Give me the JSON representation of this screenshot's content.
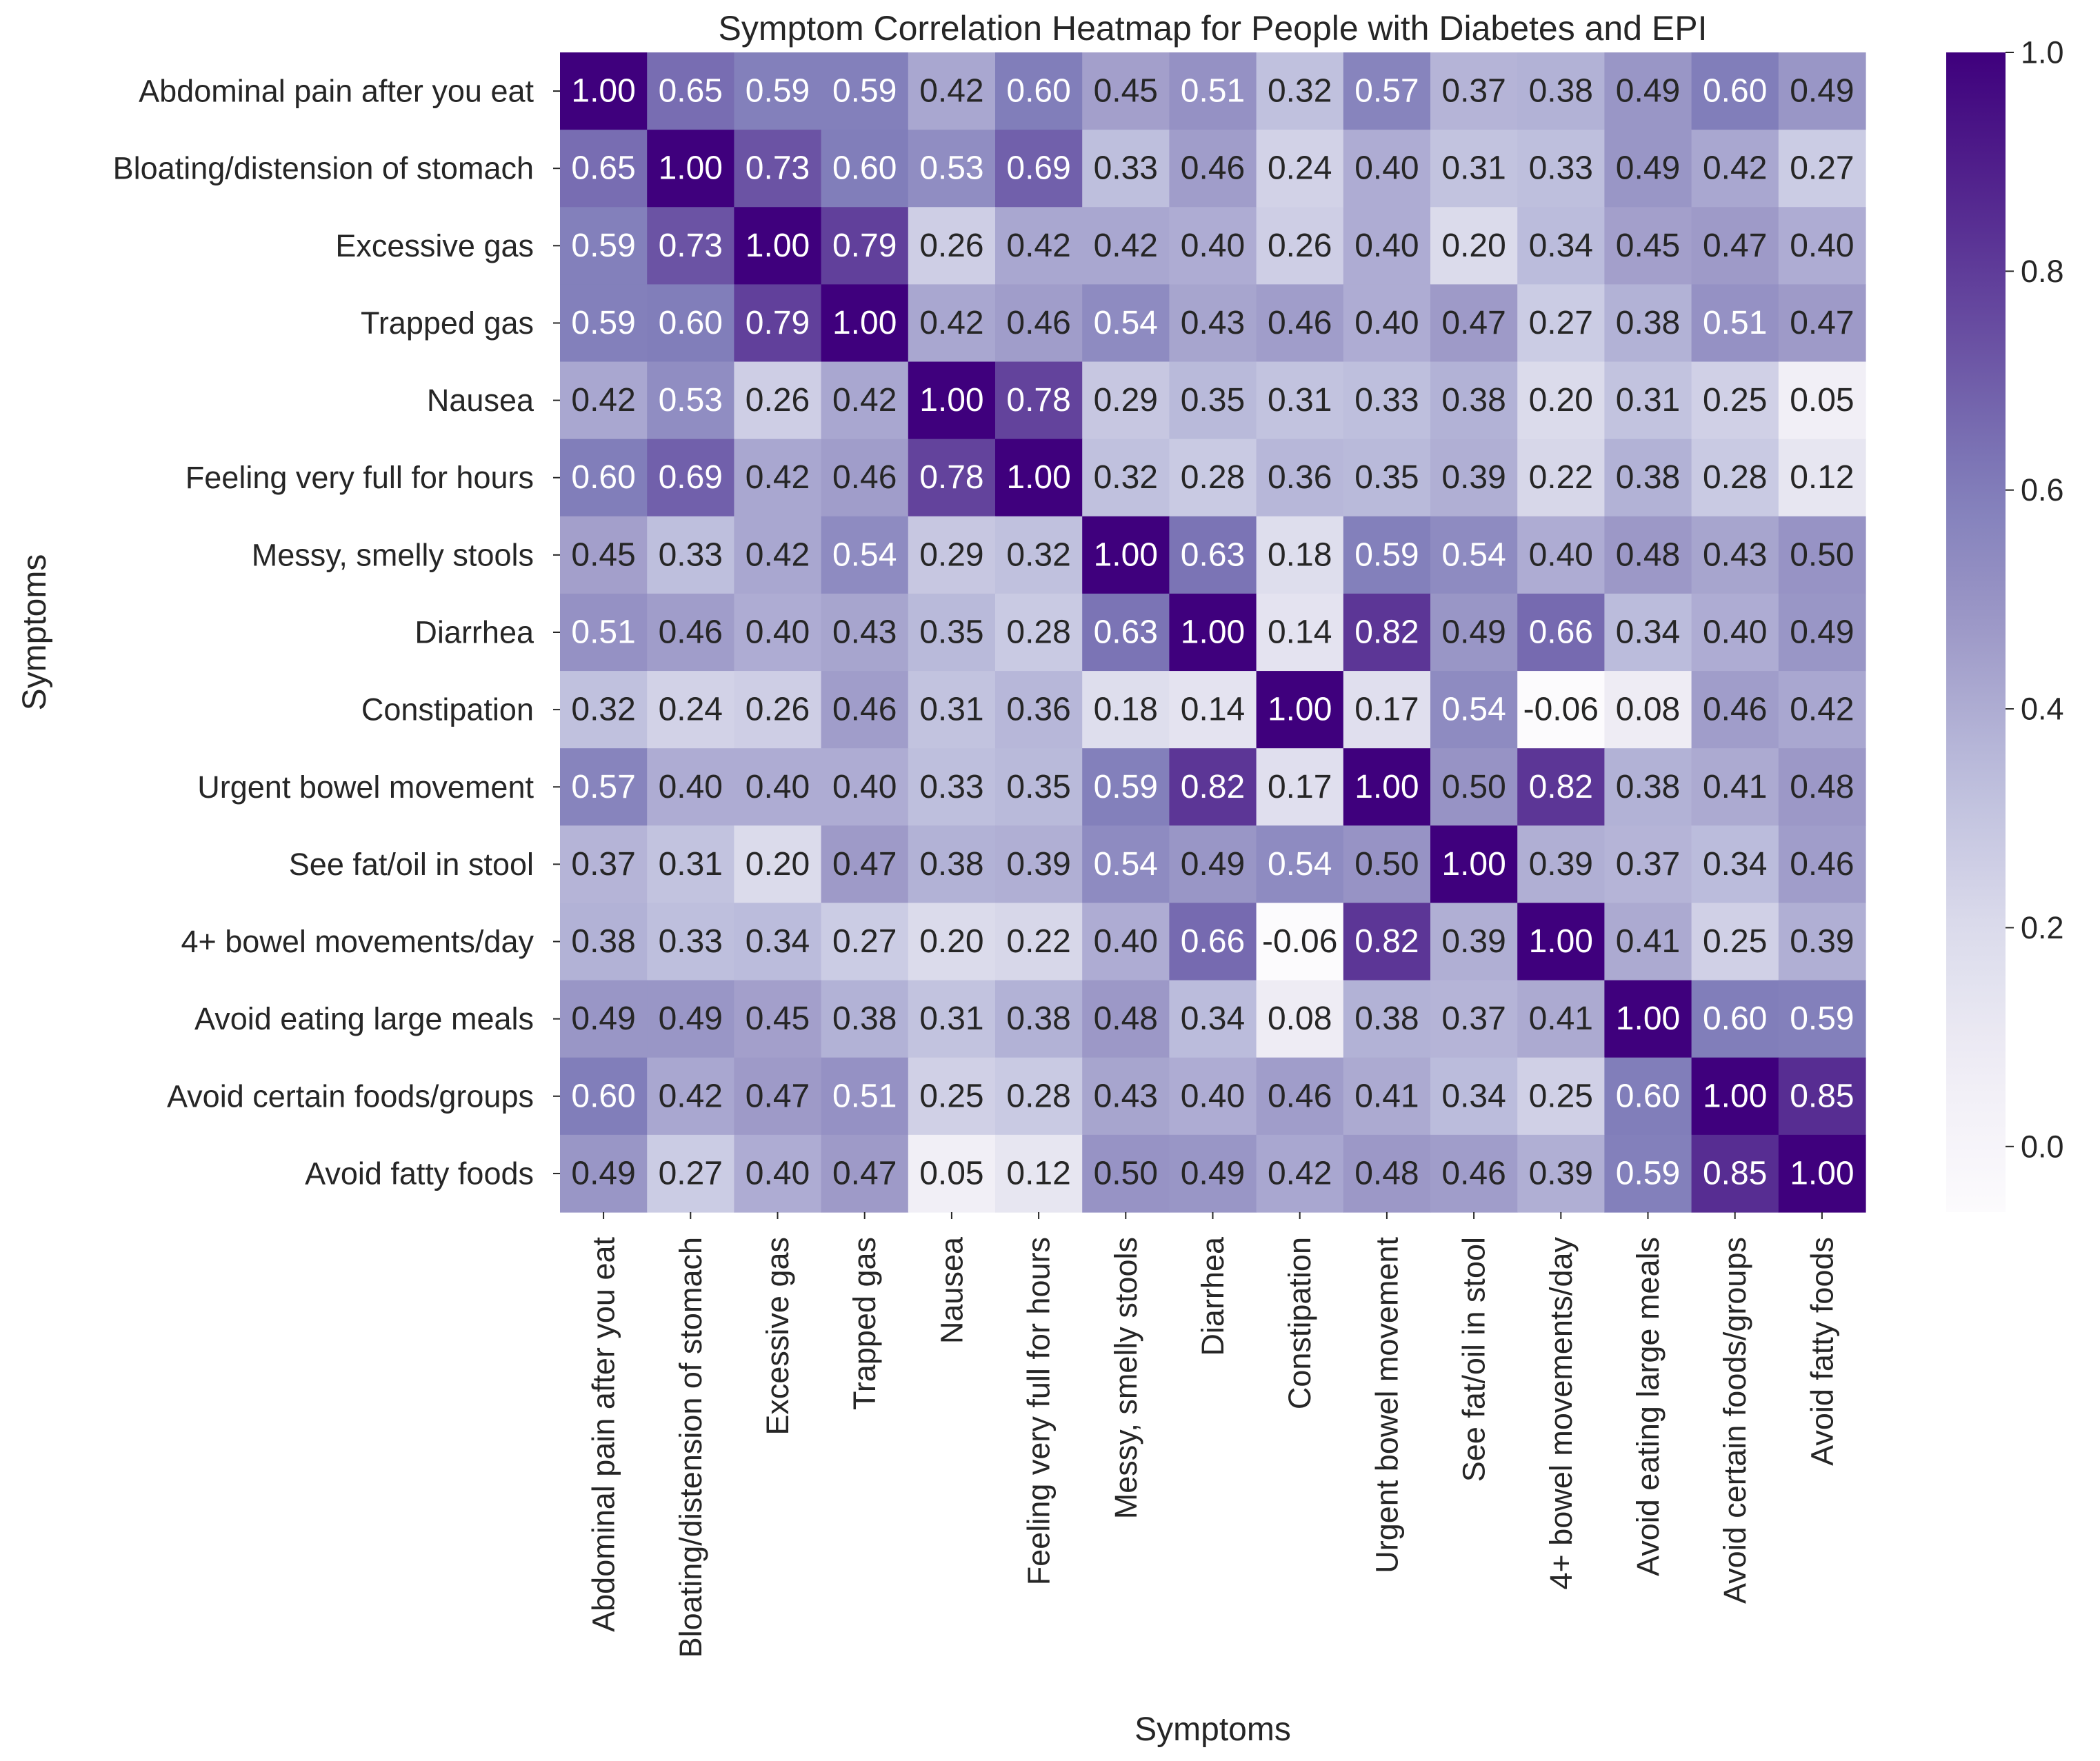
{
  "chart_data": {
    "type": "heatmap",
    "title": "Symptom Correlation Heatmap for People with Diabetes and EPI",
    "xlabel": "Symptoms",
    "ylabel": "Symptoms",
    "categories": [
      "Abdominal pain after you eat",
      "Bloating/distension of stomach",
      "Excessive gas",
      "Trapped gas",
      "Nausea",
      "Feeling very full for hours",
      "Messy, smelly stools",
      "Diarrhea",
      "Constipation",
      "Urgent bowel movement",
      "See fat/oil in stool",
      "4+ bowel movements/day",
      "Avoid eating large meals",
      "Avoid certain foods/groups",
      "Avoid fatty foods"
    ],
    "values": [
      [
        1.0,
        0.65,
        0.59,
        0.59,
        0.42,
        0.6,
        0.45,
        0.51,
        0.32,
        0.57,
        0.37,
        0.38,
        0.49,
        0.6,
        0.49
      ],
      [
        0.65,
        1.0,
        0.73,
        0.6,
        0.53,
        0.69,
        0.33,
        0.46,
        0.24,
        0.4,
        0.31,
        0.33,
        0.49,
        0.42,
        0.27
      ],
      [
        0.59,
        0.73,
        1.0,
        0.79,
        0.26,
        0.42,
        0.42,
        0.4,
        0.26,
        0.4,
        0.2,
        0.34,
        0.45,
        0.47,
        0.4
      ],
      [
        0.59,
        0.6,
        0.79,
        1.0,
        0.42,
        0.46,
        0.54,
        0.43,
        0.46,
        0.4,
        0.47,
        0.27,
        0.38,
        0.51,
        0.47
      ],
      [
        0.42,
        0.53,
        0.26,
        0.42,
        1.0,
        0.78,
        0.29,
        0.35,
        0.31,
        0.33,
        0.38,
        0.2,
        0.31,
        0.25,
        0.05
      ],
      [
        0.6,
        0.69,
        0.42,
        0.46,
        0.78,
        1.0,
        0.32,
        0.28,
        0.36,
        0.35,
        0.39,
        0.22,
        0.38,
        0.28,
        0.12
      ],
      [
        0.45,
        0.33,
        0.42,
        0.54,
        0.29,
        0.32,
        1.0,
        0.63,
        0.18,
        0.59,
        0.54,
        0.4,
        0.48,
        0.43,
        0.5
      ],
      [
        0.51,
        0.46,
        0.4,
        0.43,
        0.35,
        0.28,
        0.63,
        1.0,
        0.14,
        0.82,
        0.49,
        0.66,
        0.34,
        0.4,
        0.49
      ],
      [
        0.32,
        0.24,
        0.26,
        0.46,
        0.31,
        0.36,
        0.18,
        0.14,
        1.0,
        0.17,
        0.54,
        -0.06,
        0.08,
        0.46,
        0.42
      ],
      [
        0.57,
        0.4,
        0.4,
        0.4,
        0.33,
        0.35,
        0.59,
        0.82,
        0.17,
        1.0,
        0.5,
        0.82,
        0.38,
        0.41,
        0.48
      ],
      [
        0.37,
        0.31,
        0.2,
        0.47,
        0.38,
        0.39,
        0.54,
        0.49,
        0.54,
        0.5,
        1.0,
        0.39,
        0.37,
        0.34,
        0.46
      ],
      [
        0.38,
        0.33,
        0.34,
        0.27,
        0.2,
        0.22,
        0.4,
        0.66,
        -0.06,
        0.82,
        0.39,
        1.0,
        0.41,
        0.25,
        0.39
      ],
      [
        0.49,
        0.49,
        0.45,
        0.38,
        0.31,
        0.38,
        0.48,
        0.34,
        0.08,
        0.38,
        0.37,
        0.41,
        1.0,
        0.6,
        0.59
      ],
      [
        0.6,
        0.42,
        0.47,
        0.51,
        0.25,
        0.28,
        0.43,
        0.4,
        0.46,
        0.41,
        0.34,
        0.25,
        0.6,
        1.0,
        0.85
      ],
      [
        0.49,
        0.27,
        0.4,
        0.47,
        0.05,
        0.12,
        0.5,
        0.49,
        0.42,
        0.48,
        0.46,
        0.39,
        0.59,
        0.85,
        1.0
      ]
    ],
    "colorbar": {
      "colormap": "Purples",
      "vmin": -0.06,
      "vmax": 1.0,
      "ticks": [
        0.0,
        0.2,
        0.4,
        0.6,
        0.8,
        1.0
      ],
      "tick_labels": [
        "0.0",
        "0.2",
        "0.4",
        "0.6",
        "0.8",
        "1.0"
      ]
    },
    "annotation_format": "2 decimals",
    "grid": false,
    "legend": "colorbar-right"
  }
}
